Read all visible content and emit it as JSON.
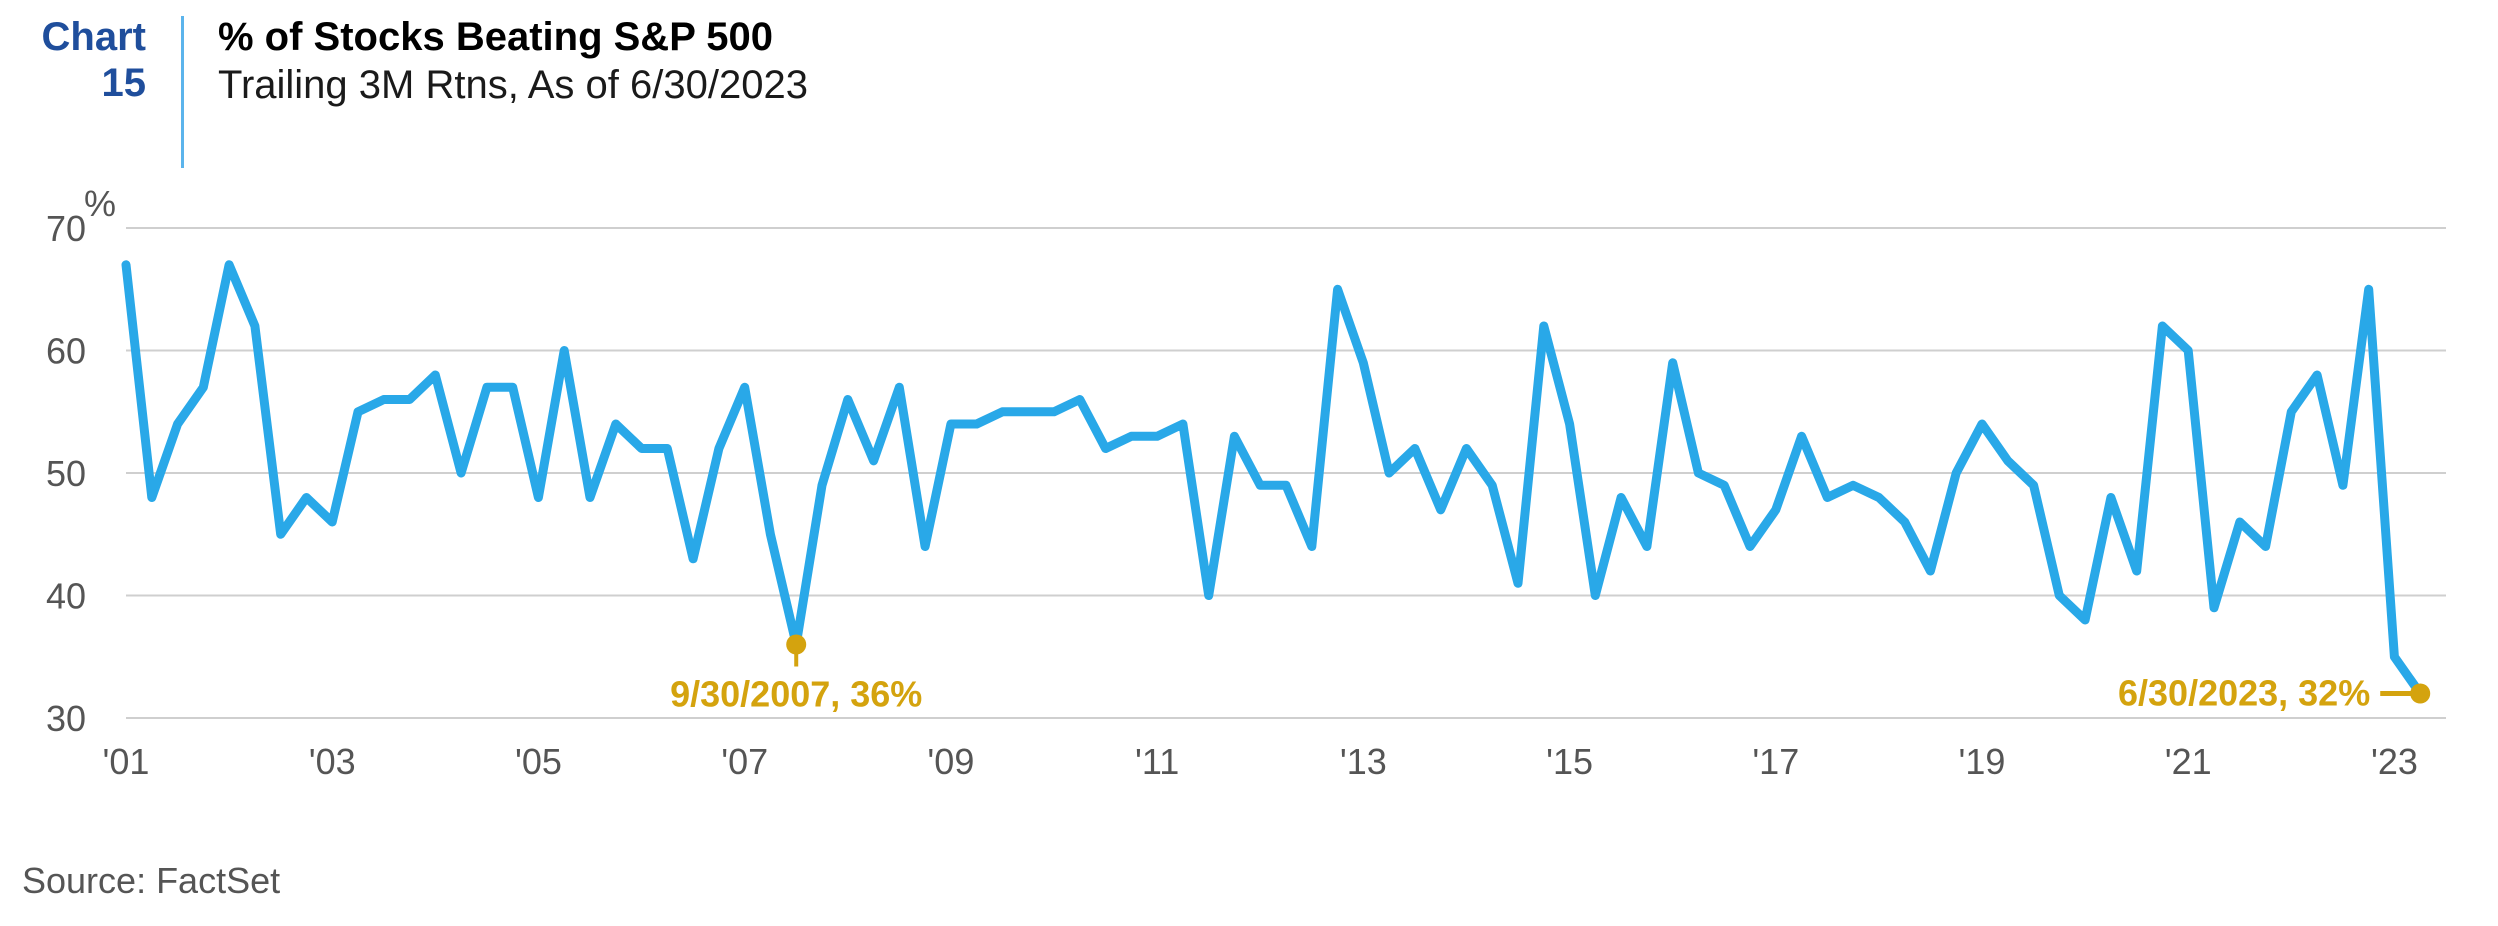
{
  "header": {
    "chart_word": "Chart",
    "chart_number": "15",
    "title": "% of Stocks Beating S&P 500",
    "subtitle": "Trailing 3M Rtns, As of 6/30/2023"
  },
  "source": "Source: FactSet",
  "chart_data": {
    "type": "line",
    "title": "% of Stocks Beating S&P 500",
    "subtitle": "Trailing 3M Rtns, As of 6/30/2023",
    "y_unit": "%",
    "ylim": [
      30,
      70
    ],
    "y_ticks": [
      30,
      40,
      50,
      60,
      70
    ],
    "xlim": [
      2001.0,
      2023.5
    ],
    "x_ticks": [
      {
        "value": 2001,
        "label": "'01"
      },
      {
        "value": 2003,
        "label": "'03"
      },
      {
        "value": 2005,
        "label": "'05"
      },
      {
        "value": 2007,
        "label": "'07"
      },
      {
        "value": 2009,
        "label": "'09"
      },
      {
        "value": 2011,
        "label": "'11"
      },
      {
        "value": 2013,
        "label": "'13"
      },
      {
        "value": 2015,
        "label": "'15"
      },
      {
        "value": 2017,
        "label": "'17"
      },
      {
        "value": 2019,
        "label": "'19"
      },
      {
        "value": 2021,
        "label": "'21"
      },
      {
        "value": 2023,
        "label": "'23"
      }
    ],
    "grid": true,
    "series_color": "#29a8e8",
    "annotation_color": "#d4a30e",
    "values": [
      67,
      48,
      54,
      57,
      67,
      62,
      45,
      48,
      46,
      55,
      56,
      56,
      58,
      50,
      57,
      57,
      48,
      60,
      48,
      54,
      52,
      52,
      43,
      52,
      57,
      45,
      36,
      49,
      56,
      51,
      57,
      44,
      54,
      54,
      55,
      55,
      55,
      56,
      52,
      53,
      53,
      54,
      40,
      53,
      49,
      49,
      44,
      65,
      59,
      50,
      52,
      47,
      52,
      49,
      41,
      62,
      54,
      40,
      48,
      44,
      59,
      50,
      49,
      44,
      47,
      53,
      48,
      49,
      48,
      46,
      42,
      50,
      54,
      51,
      49,
      40,
      38,
      48,
      42,
      62,
      60,
      39,
      46,
      44,
      55,
      58,
      49,
      65,
      35,
      32
    ],
    "x_start": 2001.0,
    "x_step": 0.25,
    "annotations": [
      {
        "x_index": 26,
        "value": 36,
        "text": "9/30/2007, 36%"
      },
      {
        "x_index": 89,
        "value": 32,
        "text": "6/30/2023, 32%"
      }
    ]
  }
}
